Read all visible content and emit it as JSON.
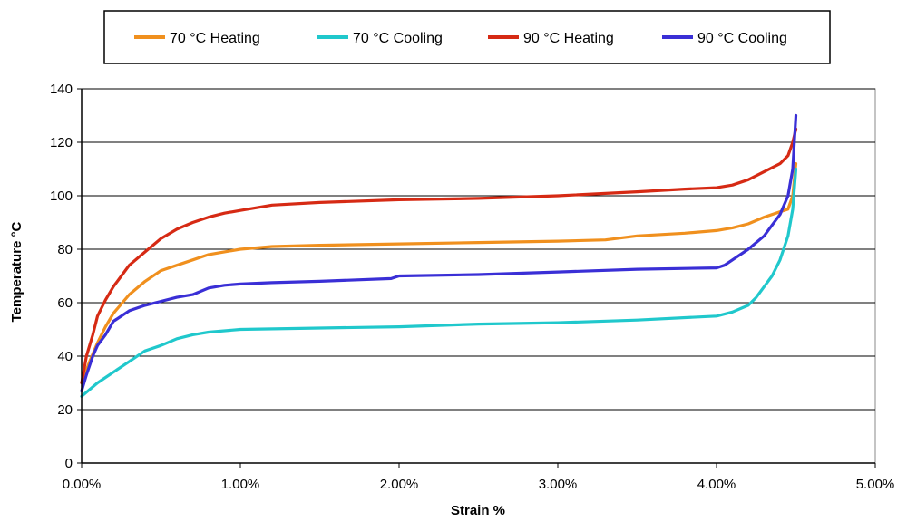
{
  "chart_data": {
    "type": "line",
    "title": "",
    "xlabel": "Strain %",
    "ylabel": "Temperature °C",
    "xlim": [
      0,
      5
    ],
    "ylim": [
      0,
      140
    ],
    "x_ticks": [
      "0.00%",
      "1.00%",
      "2.00%",
      "3.00%",
      "4.00%",
      "5.00%"
    ],
    "x_tick_values": [
      0,
      1,
      2,
      3,
      4,
      5
    ],
    "y_ticks": [
      "0",
      "20",
      "40",
      "60",
      "80",
      "100",
      "120",
      "140"
    ],
    "y_tick_values": [
      0,
      20,
      40,
      60,
      80,
      100,
      120,
      140
    ],
    "grid": "horizontal",
    "legend_position": "top",
    "series": [
      {
        "name": "70 °C Heating",
        "color": "#f0901e",
        "x": [
          0.0,
          0.05,
          0.1,
          0.15,
          0.2,
          0.3,
          0.4,
          0.5,
          0.6,
          0.7,
          0.8,
          0.9,
          1.0,
          1.2,
          1.5,
          2.0,
          2.5,
          3.0,
          3.3,
          3.5,
          3.8,
          4.0,
          4.1,
          4.2,
          4.3,
          4.4,
          4.45,
          4.48,
          4.5
        ],
        "y": [
          30,
          38,
          45,
          51,
          56,
          63,
          68,
          72,
          74,
          76,
          78,
          79,
          80,
          81,
          81.5,
          82,
          82.5,
          83,
          83.5,
          85,
          86,
          87,
          88,
          89.5,
          92,
          94,
          95,
          100,
          112
        ]
      },
      {
        "name": "70 °C Cooling",
        "color": "#20c8cc",
        "x": [
          0.0,
          0.1,
          0.2,
          0.3,
          0.4,
          0.5,
          0.6,
          0.7,
          0.8,
          1.0,
          1.5,
          2.0,
          2.5,
          3.0,
          3.5,
          4.0,
          4.1,
          4.2,
          4.25,
          4.3,
          4.35,
          4.4,
          4.45,
          4.48,
          4.5
        ],
        "y": [
          25,
          30,
          34,
          38,
          42,
          44,
          46.5,
          48,
          49,
          50,
          50.5,
          51,
          52,
          52.5,
          53.5,
          55,
          56.5,
          59,
          62,
          66,
          70,
          76,
          85,
          95,
          110
        ]
      },
      {
        "name": "90 °C Heating",
        "color": "#d62a14",
        "x": [
          0.0,
          0.03,
          0.07,
          0.1,
          0.15,
          0.2,
          0.25,
          0.3,
          0.4,
          0.5,
          0.6,
          0.7,
          0.8,
          0.9,
          1.0,
          1.2,
          1.5,
          2.0,
          2.5,
          3.0,
          3.5,
          3.8,
          4.0,
          4.1,
          4.2,
          4.3,
          4.4,
          4.45,
          4.48,
          4.5
        ],
        "y": [
          30,
          40,
          48,
          55,
          61,
          66,
          70,
          74,
          79,
          84,
          87.5,
          90,
          92,
          93.5,
          94.5,
          96.5,
          97.5,
          98.5,
          99,
          100,
          101.5,
          102.5,
          103,
          104,
          106,
          109,
          112,
          115,
          120,
          125
        ]
      },
      {
        "name": "90 °C Cooling",
        "color": "#3a2fd6",
        "x": [
          0.0,
          0.03,
          0.07,
          0.1,
          0.15,
          0.2,
          0.3,
          0.4,
          0.5,
          0.6,
          0.7,
          0.8,
          0.9,
          1.0,
          1.2,
          1.5,
          1.95,
          2.0,
          2.5,
          3.0,
          3.5,
          4.0,
          4.05,
          4.1,
          4.2,
          4.3,
          4.35,
          4.4,
          4.45,
          4.48,
          4.5
        ],
        "y": [
          27,
          33,
          40,
          44,
          48,
          53,
          57,
          59,
          60.5,
          62,
          63,
          65.5,
          66.5,
          67,
          67.5,
          68,
          69,
          70,
          70.5,
          71.5,
          72.5,
          73,
          74,
          76,
          80,
          85,
          89,
          93,
          100,
          110,
          130
        ]
      }
    ]
  }
}
